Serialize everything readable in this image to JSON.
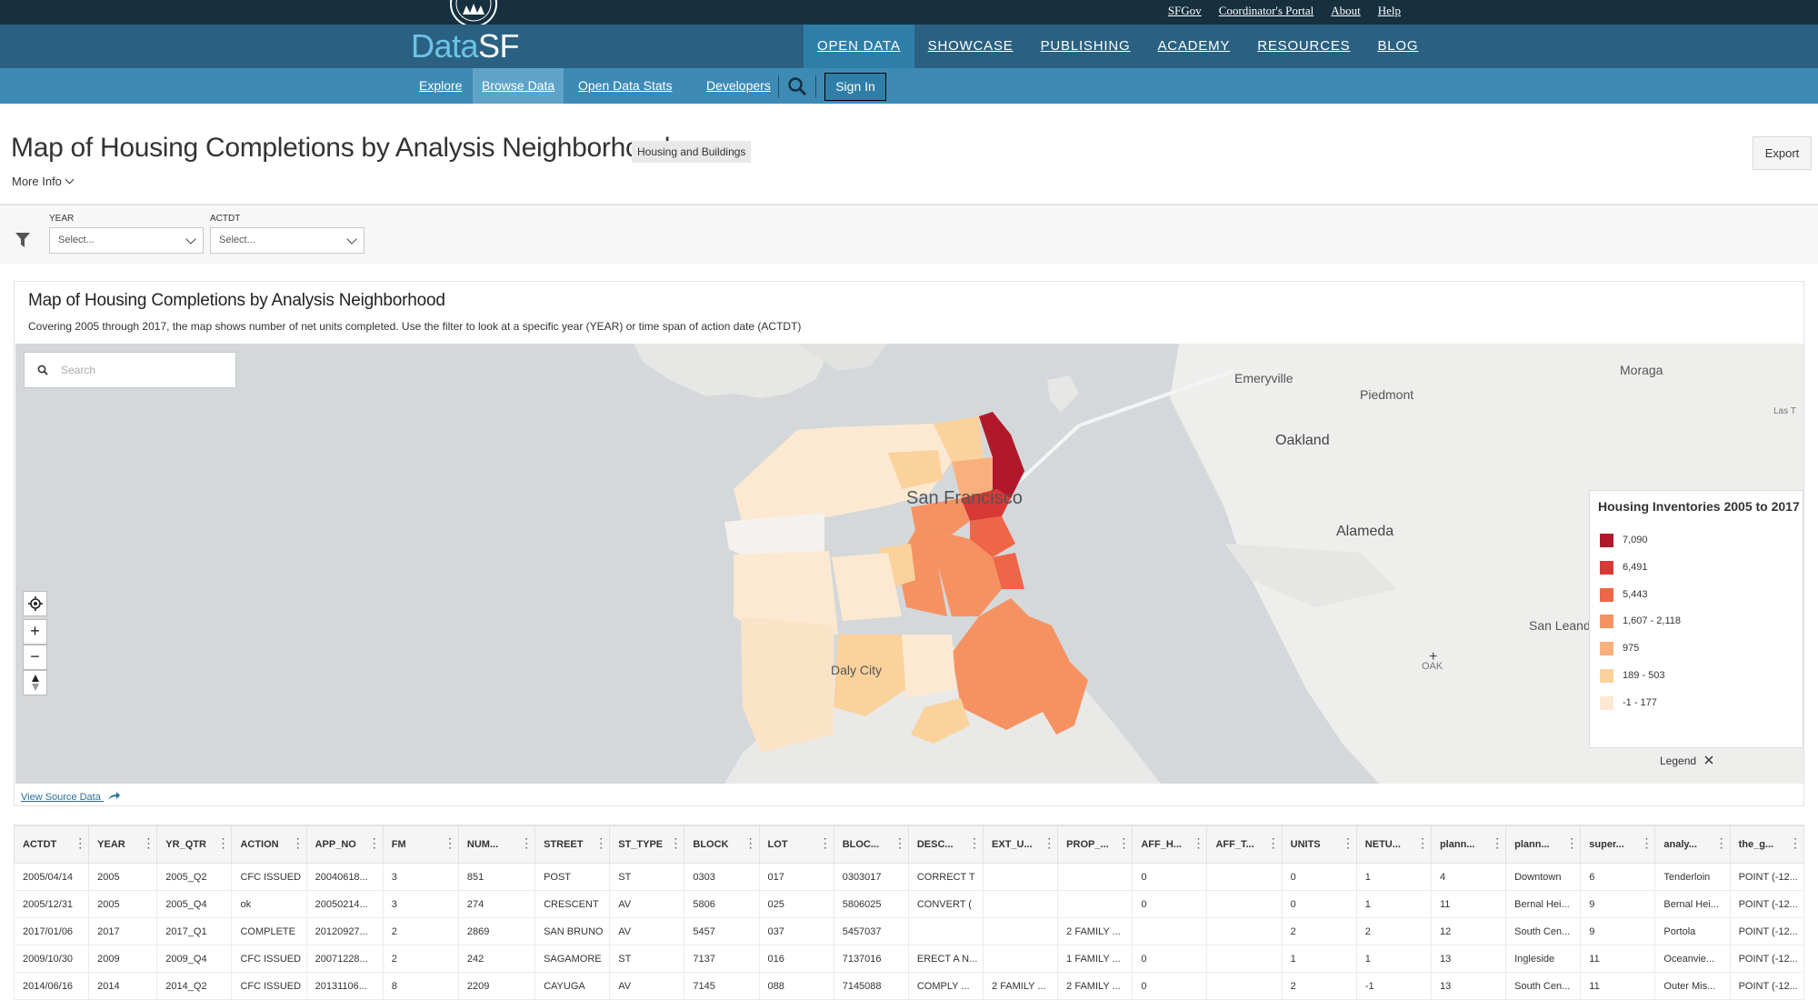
{
  "top_links": [
    "SFGov",
    "Coordinator's Portal",
    "About",
    "Help"
  ],
  "brand": {
    "prefix": "Data",
    "suffix": "SF"
  },
  "main_nav": [
    {
      "label": "OPEN DATA",
      "active": true
    },
    {
      "label": "SHOWCASE",
      "active": false
    },
    {
      "label": "PUBLISHING",
      "active": false
    },
    {
      "label": "ACADEMY",
      "active": false
    },
    {
      "label": "RESOURCES",
      "active": false
    },
    {
      "label": "BLOG",
      "active": false
    }
  ],
  "sub_nav": [
    {
      "label": "Explore",
      "active": false
    },
    {
      "label": "Browse Data",
      "active": true
    },
    {
      "label": "Open Data Stats",
      "active": false
    },
    {
      "label": "Developers",
      "active": false
    }
  ],
  "sign_in_label": "Sign In",
  "page": {
    "title": "Map of Housing Completions by Analysis Neighborhood",
    "category": "Housing and Buildings",
    "more_info": "More Info",
    "export_label": "Export"
  },
  "filters": [
    {
      "label": "YEAR",
      "value": "Select..."
    },
    {
      "label": "ACTDT",
      "value": "Select..."
    }
  ],
  "card": {
    "title": "Map of Housing Completions by Analysis Neighborhood",
    "description": "Covering 2005 through 2017, the map shows number of net units completed. Use the filter to look at a specific year (YEAR) or time span of action date (ACTDT)",
    "view_source": "View Source Data"
  },
  "map": {
    "search_placeholder": "Search",
    "zoom_in": "+",
    "zoom_out": "−",
    "place_labels": {
      "emeryville": "Emeryville",
      "piedmont": "Piedmont",
      "moraga": "Moraga",
      "oakland": "Oakland",
      "las": "Las T",
      "sanfrancisco": "San Francisco",
      "alameda": "Alameda",
      "sanleandro": "San Leand",
      "dalycity": "Daly City",
      "oak": "OAK"
    },
    "legend": {
      "title": "Housing Inventories 2005 to 2017",
      "toggle_label": "Legend",
      "items": [
        {
          "label": "7,090",
          "color": "#b2182b"
        },
        {
          "label": "6,491",
          "color": "#d73a36"
        },
        {
          "label": "5,443",
          "color": "#ef6548"
        },
        {
          "label": "1,607 - 2,118",
          "color": "#f69262"
        },
        {
          "label": "975",
          "color": "#f9b07c"
        },
        {
          "label": "189 - 503",
          "color": "#fbd19c"
        },
        {
          "label": "-1 - 177",
          "color": "#fde9d1"
        }
      ]
    }
  },
  "table": {
    "columns": [
      "ACTDT",
      "YEAR",
      "YR_QTR",
      "ACTION",
      "APP_NO",
      "FM",
      "NUM...",
      "STREET",
      "ST_TYPE",
      "BLOCK",
      "LOT",
      "BLOC...",
      "DESC...",
      "EXT_U...",
      "PROP_...",
      "AFF_H...",
      "AFF_T...",
      "UNITS",
      "NETU...",
      "plann...",
      "plann...",
      "super...",
      "analy...",
      "the_g..."
    ],
    "rows": [
      [
        "2005/04/14",
        "2005",
        "2005_Q2",
        "CFC ISSUED",
        "20040618...",
        "3",
        "851",
        "POST",
        "ST",
        "0303",
        "017",
        "0303017",
        "CORRECT T",
        "",
        "",
        "0",
        "",
        "0",
        "1",
        "4",
        "Downtown",
        "6",
        "Tenderloin",
        "POINT (-12..."
      ],
      [
        "2005/12/31",
        "2005",
        "2005_Q4",
        "ok",
        "20050214...",
        "3",
        "274",
        "CRESCENT",
        "AV",
        "5806",
        "025",
        "5806025",
        "CONVERT (",
        "",
        "",
        "0",
        "",
        "0",
        "1",
        "11",
        "Bernal Hei...",
        "9",
        "Bernal Hei...",
        "POINT (-12..."
      ],
      [
        "2017/01/06",
        "2017",
        "2017_Q1",
        "COMPLETE",
        "20120927...",
        "2",
        "2869",
        "SAN BRUNO",
        "AV",
        "5457",
        "037",
        "5457037",
        "",
        "",
        "2 FAMILY ...",
        "",
        "",
        "2",
        "2",
        "12",
        "South Cen...",
        "9",
        "Portola",
        "POINT (-12..."
      ],
      [
        "2009/10/30",
        "2009",
        "2009_Q4",
        "CFC ISSUED",
        "20071228...",
        "2",
        "242",
        "SAGAMORE",
        "ST",
        "7137",
        "016",
        "7137016",
        "ERECT A N...",
        "",
        "1 FAMILY ...",
        "0",
        "",
        "1",
        "1",
        "13",
        "Ingleside",
        "11",
        "Oceanvie...",
        "POINT (-12..."
      ],
      [
        "2014/06/16",
        "2014",
        "2014_Q2",
        "CFC ISSUED",
        "20131106...",
        "8",
        "2209",
        "CAYUGA",
        "AV",
        "7145",
        "088",
        "7145088",
        "COMPLY ...",
        "2 FAMILY ...",
        "2 FAMILY ...",
        "0",
        "",
        "2",
        "-1",
        "13",
        "South Cen...",
        "11",
        "Outer Mis...",
        "POINT (-12..."
      ]
    ]
  }
}
